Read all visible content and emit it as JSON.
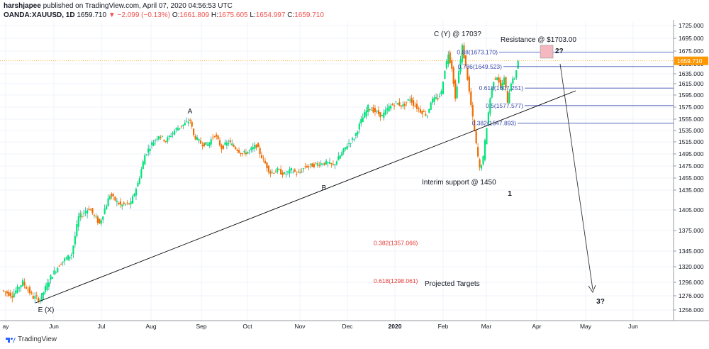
{
  "header": {
    "publisher": "harshjapee",
    "published_text": "published on TradingView.com, April 07, 2020 04:56:53 UTC",
    "symbol": "OANDA:XAUUSD, 1D",
    "last": "1659.710",
    "change": "−2.099 (−0.13%)",
    "o_label": "O:",
    "o": "1661.809",
    "h_label": "H:",
    "h": "1675.605",
    "l_label": "L:",
    "l": "1654.997",
    "c_label": "C:",
    "c": "1659.710"
  },
  "footer": {
    "brand": "TradingView"
  },
  "colors": {
    "up": "#26c6da",
    "upFill": "#00e676",
    "down": "#ef6c00",
    "fib": "#3f51b5",
    "trend": "#000000",
    "target": "#e53935",
    "price_line": "#ff9800",
    "box": "#f5b7c0"
  },
  "chart_data": {
    "type": "candlestick",
    "y_axis": {
      "ticks": [
        1725,
        1695,
        1675,
        1655,
        1635,
        1615,
        1595,
        1575,
        1555,
        1535,
        1515,
        1495,
        1475,
        1455,
        1435,
        1405,
        1375,
        1345,
        1320,
        1296,
        1276,
        1256
      ],
      "labels": [
        "1725.000",
        "1695.000",
        "1675.000",
        "1655.000",
        "1635.000",
        "1615.000",
        "1595.000",
        "1575.000",
        "1555.000",
        "1535.000",
        "1515.000",
        "1495.000",
        "1475.000",
        "1455.000",
        "1435.000",
        "1405.000",
        "1375.000",
        "1345.000",
        "1320.000",
        "1296.000",
        "1276.000",
        "1256.000"
      ]
    },
    "x_axis": {
      "labels": [
        "ay",
        "Jun",
        "Jul",
        "Aug",
        "Sep",
        "Oct",
        "Nov",
        "Dec",
        "2020",
        "Feb",
        "Mar",
        "Apr",
        "May",
        "Jun"
      ]
    },
    "last_price": 1659.71,
    "last_price_label": "1659.710",
    "price_path": [
      [
        0,
        1284
      ],
      [
        6,
        1277
      ],
      [
        12,
        1296
      ],
      [
        18,
        1274
      ],
      [
        22,
        1271
      ],
      [
        28,
        1304
      ],
      [
        34,
        1327
      ],
      [
        40,
        1340
      ],
      [
        44,
        1394
      ],
      [
        50,
        1408
      ],
      [
        56,
        1385
      ],
      [
        62,
        1428
      ],
      [
        68,
        1412
      ],
      [
        74,
        1415
      ],
      [
        78,
        1446
      ],
      [
        82,
        1493
      ],
      [
        86,
        1512
      ],
      [
        90,
        1527
      ],
      [
        94,
        1517
      ],
      [
        100,
        1538
      ],
      [
        104,
        1545
      ],
      [
        108,
        1553
      ],
      [
        110,
        1526
      ],
      [
        114,
        1513
      ],
      [
        118,
        1510
      ],
      [
        122,
        1528
      ],
      [
        126,
        1505
      ],
      [
        130,
        1515
      ],
      [
        134,
        1505
      ],
      [
        138,
        1495
      ],
      [
        142,
        1500
      ],
      [
        146,
        1509
      ],
      [
        150,
        1484
      ],
      [
        154,
        1464
      ],
      [
        158,
        1468
      ],
      [
        162,
        1461
      ],
      [
        166,
        1468
      ],
      [
        170,
        1462
      ],
      [
        174,
        1474
      ],
      [
        178,
        1476
      ],
      [
        182,
        1479
      ],
      [
        186,
        1480
      ],
      [
        190,
        1476
      ],
      [
        194,
        1492
      ],
      [
        198,
        1510
      ],
      [
        202,
        1522
      ],
      [
        206,
        1552
      ],
      [
        210,
        1575
      ],
      [
        214,
        1568
      ],
      [
        218,
        1560
      ],
      [
        222,
        1575
      ],
      [
        226,
        1582
      ],
      [
        230,
        1577
      ],
      [
        234,
        1589
      ],
      [
        236,
        1580
      ],
      [
        240,
        1569
      ],
      [
        244,
        1562
      ],
      [
        246,
        1585
      ],
      [
        250,
        1590
      ],
      [
        252,
        1600
      ],
      [
        254,
        1644
      ],
      [
        256,
        1672
      ],
      [
        258,
        1648
      ],
      [
        260,
        1588
      ],
      [
        262,
        1640
      ],
      [
        264,
        1682
      ],
      [
        266,
        1650
      ],
      [
        268,
        1600
      ],
      [
        270,
        1556
      ],
      [
        272,
        1510
      ],
      [
        274,
        1470
      ],
      [
        276,
        1488
      ],
      [
        278,
        1542
      ],
      [
        280,
        1590
      ],
      [
        282,
        1622
      ],
      [
        284,
        1630
      ],
      [
        286,
        1608
      ],
      [
        288,
        1625
      ],
      [
        290,
        1585
      ],
      [
        292,
        1618
      ],
      [
        294,
        1627
      ],
      [
        296,
        1660
      ]
    ],
    "fib_levels": [
      {
        "label": "0.88(1673.170)",
        "value": 1673.17
      },
      {
        "label": "0.786(1649.523)",
        "value": 1649.523
      },
      {
        "label": "0.618(1607.251)",
        "value": 1607.251
      },
      {
        "label": "0.5(1577.577)",
        "value": 1577.577
      },
      {
        "label": "0.382(1547.893)",
        "value": 1547.893
      }
    ],
    "target_levels": [
      {
        "label": "0.382(1357.066)",
        "value": 1357.066
      },
      {
        "label": "0.618(1298.061)",
        "value": 1298.061
      }
    ],
    "annotations": [
      {
        "id": "wave-a",
        "text": "A"
      },
      {
        "id": "wave-b",
        "text": "B"
      },
      {
        "id": "wave-cy",
        "text": "C (Y) @ 1703?"
      },
      {
        "id": "wave-ex",
        "text": "E (X)"
      },
      {
        "id": "resistance",
        "text": "Resistance @ $1703.00"
      },
      {
        "id": "wave-2",
        "text": "2?"
      },
      {
        "id": "interim",
        "text": "Interim support @ 1450"
      },
      {
        "id": "wave-1",
        "text": "1"
      },
      {
        "id": "wave-3",
        "text": "3?"
      },
      {
        "id": "projected",
        "text": "Projected Targets"
      }
    ]
  }
}
